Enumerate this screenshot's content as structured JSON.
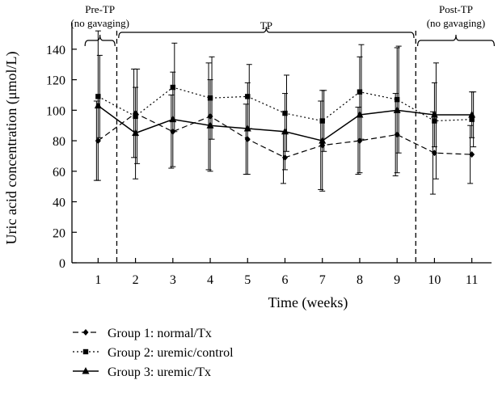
{
  "chart_data": {
    "type": "line",
    "ylabel": "Uric acid concentration (μmol/L)",
    "xlabel": "Time (weeks)",
    "x": [
      1,
      2,
      3,
      4,
      5,
      6,
      7,
      8,
      9,
      10,
      11
    ],
    "xlim": [
      0.3,
      11.7
    ],
    "ylim": [
      0,
      150
    ],
    "yticks": [
      0,
      20,
      40,
      60,
      80,
      100,
      120,
      140
    ],
    "xticks": [
      1,
      2,
      3,
      4,
      5,
      6,
      7,
      8,
      9,
      10,
      11
    ],
    "grid": false,
    "legend_position": "bottom-left",
    "series": [
      {
        "name": "Group 1: normal/Tx",
        "style": "dashed",
        "marker": "diamond",
        "values": [
          80,
          98,
          86,
          96,
          81,
          69,
          77,
          80,
          84,
          72,
          71
        ],
        "errors": [
          26,
          29,
          24,
          35,
          23,
          17,
          29,
          22,
          27,
          27,
          19
        ]
      },
      {
        "name": "Group 2: uremic/control",
        "style": "dotted",
        "marker": "square",
        "values": [
          109,
          96,
          115,
          108,
          109,
          98,
          93,
          112,
          107,
          93,
          94
        ],
        "errors": [
          27,
          31,
          29,
          27,
          21,
          25,
          20,
          31,
          35,
          38,
          18
        ]
      },
      {
        "name": "Group 3: uremic/Tx",
        "style": "solid",
        "marker": "triangle",
        "values": [
          103,
          85,
          94,
          90,
          88,
          86,
          80,
          97,
          100,
          97,
          97
        ],
        "errors": [
          49,
          30,
          31,
          30,
          30,
          25,
          33,
          38,
          41,
          21,
          15
        ]
      }
    ],
    "annotations": {
      "dividers_at": [
        1.5,
        9.5
      ],
      "regions": [
        {
          "label": "Pre-TP",
          "sublabel": "(no gavaging)",
          "from": 0.65,
          "to": 1.45
        },
        {
          "label": "TP",
          "sublabel": "",
          "from": 1.55,
          "to": 9.45
        },
        {
          "label": "Post-TP",
          "sublabel": "(no gavaging)",
          "from": 9.55,
          "to": 11.6
        }
      ]
    }
  }
}
